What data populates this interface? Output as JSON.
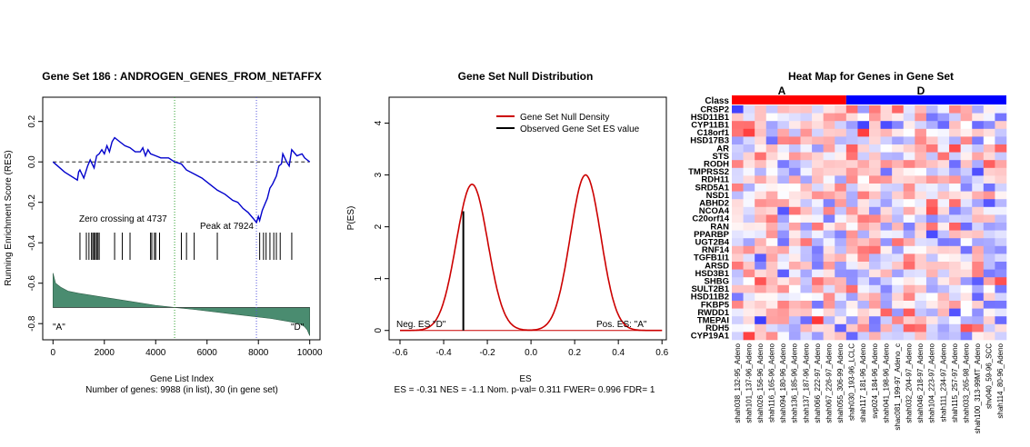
{
  "chart_data": [
    {
      "type": "line",
      "title": "Gene Set  186 : ANDROGEN_GENES_FROM_NETAFFX",
      "xlabel": "Gene List Index",
      "subtitle": "Number of genes: 9988 (in list), 30 (in gene set)",
      "ylabel": "Running Enrichment Score (RES)",
      "xlim": [
        -400,
        10400
      ],
      "ylim": [
        -0.88,
        0.32
      ],
      "x_ticks": [
        "0",
        "2000",
        "4000",
        "6000",
        "8000",
        "10000"
      ],
      "y_ticks": [
        "0.2",
        "0.0",
        "-0.2",
        "-0.4",
        "-0.6",
        "-0.8"
      ],
      "zero_crossing": 4737,
      "peak": 7924,
      "zero_crossing_label": "Zero crossing at 4737",
      "peak_label": "Peak at 7924",
      "left_class_label": "\"A\"",
      "right_class_label": "\"D\"",
      "res_curve": {
        "x": [
          0,
          450,
          950,
          1000,
          1050,
          1200,
          1350,
          1450,
          1600,
          1700,
          1800,
          1900,
          2000,
          2100,
          2200,
          2300,
          2400,
          2600,
          2800,
          3000,
          3200,
          3400,
          3500,
          3600,
          3700,
          3800,
          4000,
          4200,
          4500,
          4737,
          5000,
          5200,
          5500,
          5800,
          6100,
          6400,
          6700,
          7000,
          7200,
          7400,
          7600,
          7800,
          7924,
          8000,
          8050,
          8150,
          8250,
          8350,
          8450,
          8550,
          8700,
          8800,
          8900,
          8950,
          9100,
          9200,
          9300,
          9500,
          9700,
          9800,
          9900,
          10000
        ],
        "y": [
          0.0,
          -0.05,
          -0.09,
          -0.05,
          -0.04,
          -0.08,
          -0.02,
          0.01,
          -0.03,
          0.03,
          0.04,
          0.06,
          0.04,
          0.08,
          0.05,
          0.1,
          0.12,
          0.1,
          0.08,
          0.07,
          0.05,
          0.05,
          0.07,
          0.03,
          0.06,
          0.04,
          0.03,
          0.02,
          0.02,
          0.0,
          -0.01,
          -0.04,
          -0.06,
          -0.08,
          -0.11,
          -0.14,
          -0.16,
          -0.19,
          -0.2,
          -0.23,
          -0.25,
          -0.28,
          -0.3,
          -0.27,
          -0.29,
          -0.24,
          -0.21,
          -0.18,
          -0.13,
          -0.11,
          -0.07,
          -0.02,
          -0.01,
          0.04,
          0.0,
          -0.02,
          0.06,
          0.03,
          0.04,
          0.02,
          0.01,
          0.0
        ]
      },
      "hit_positions": [
        1050,
        1300,
        1400,
        1500,
        1550,
        1600,
        1650,
        1700,
        1750,
        1800,
        2400,
        2700,
        3000,
        3800,
        3850,
        3950,
        4000,
        4150,
        5000,
        5200,
        5500,
        6400,
        8050,
        8200,
        8300,
        8450,
        8600,
        8700,
        8850,
        9300
      ],
      "ranked_metric": {
        "x": [
          0,
          100,
          300,
          600,
          1000,
          1500,
          2000,
          3000,
          4000,
          4737,
          5500,
          6500,
          7500,
          8500,
          9200,
          9600,
          9800,
          9900,
          10000
        ],
        "y": [
          -0.55,
          -0.6,
          -0.62,
          -0.64,
          -0.65,
          -0.66,
          -0.67,
          -0.69,
          -0.71,
          -0.72,
          -0.73,
          -0.745,
          -0.76,
          -0.775,
          -0.79,
          -0.8,
          -0.815,
          -0.83,
          -0.86
        ]
      },
      "colors": {
        "curve": "#0000cc",
        "fill": "#4a8c70",
        "zero_line": "#2ca02c",
        "peak_line": "#5555dd"
      }
    },
    {
      "type": "line",
      "title": "Gene Set Null Distribution",
      "xlabel": "ES",
      "subtitle": "ES = -0.31  NES = -1.1 Nom. p-val= 0.311 FWER= 0.996 FDR= 1",
      "ylabel": "P(ES)",
      "xlim": [
        -0.65,
        0.62
      ],
      "ylim": [
        -0.18,
        4.5
      ],
      "x_ticks": [
        "-0.6",
        "-0.4",
        "-0.2",
        "0.0",
        "0.2",
        "0.4",
        "0.6"
      ],
      "y_ticks": [
        "0",
        "1",
        "2",
        "3",
        "4"
      ],
      "series": [
        {
          "name": "Gene Set Null Density",
          "color": "#cc0000",
          "peaks": [
            [
              -0.27,
              2.82,
              0.072
            ],
            [
              0.25,
              3.0,
              0.07
            ]
          ]
        },
        {
          "name": "Observed Gene Set ES value",
          "color": "#000000",
          "x": -0.31
        }
      ],
      "observed_es": -0.31,
      "observed_density": 2.3,
      "neg_label": "Neg. ES \"D\"",
      "pos_label": "Pos. ES: \"A\""
    },
    {
      "type": "heatmap",
      "title": "Heat Map for Genes in Gene Set",
      "class_row_label": "Class",
      "class_a_label": "A",
      "class_d_label": "D",
      "class_a_count": 10,
      "class_d_count": 14,
      "class_colors": {
        "A": "#ff0000",
        "D": "#0000ff"
      },
      "genes": [
        "CRSP2",
        "HSD11B1",
        "CYP11B1",
        "C18orf1",
        "HSD17B3",
        "AR",
        "STS",
        "RODH",
        "TMPRSS2",
        "RDH11",
        "SRD5A1",
        "NSD1",
        "ABHD2",
        "NCOA4",
        "C20orf14",
        "RAN",
        "PPARBP",
        "UGT2B4",
        "RNF14",
        "TGFB1I1",
        "ARSD",
        "HSD3B1",
        "SHBG",
        "SULT2B1",
        "HSD11B2",
        "FKBP5",
        "RWDD1",
        "TMEPAI",
        "RDH5",
        "CYP19A1"
      ],
      "samples": [
        "shah038_132-95_Adeno",
        "shah101_137-96_Adeno",
        "shah026_156-96_Adeno",
        "shah116_165-96_Adeno",
        "shah094_180-96_Adeno",
        "shah136_185-96_Adeno",
        "shah137_187-96_Adeno",
        "shah066_222-97_Adeno",
        "shah067_226-97_Adeno",
        "shah055_306-99_Adeno",
        "shah030_193-96_LCLC",
        "shah117_181-96_Adeno",
        "svp024_184-96_Adeno",
        "shah041_198-96_Adeno",
        "shac081_199-97_Adeno_c",
        "shah032_204-97_Adeno",
        "shah046_218-97_Adeno",
        "shah104_223-97_Adeno",
        "shah111_234-97_Adeno",
        "shah115_257-97_Adeno",
        "shah033_265-98_Adeno",
        "shah100_313-99MT_Adeno",
        "shv040_59-96_SCC",
        "shah114_80-96_Adeno"
      ]
    }
  ]
}
